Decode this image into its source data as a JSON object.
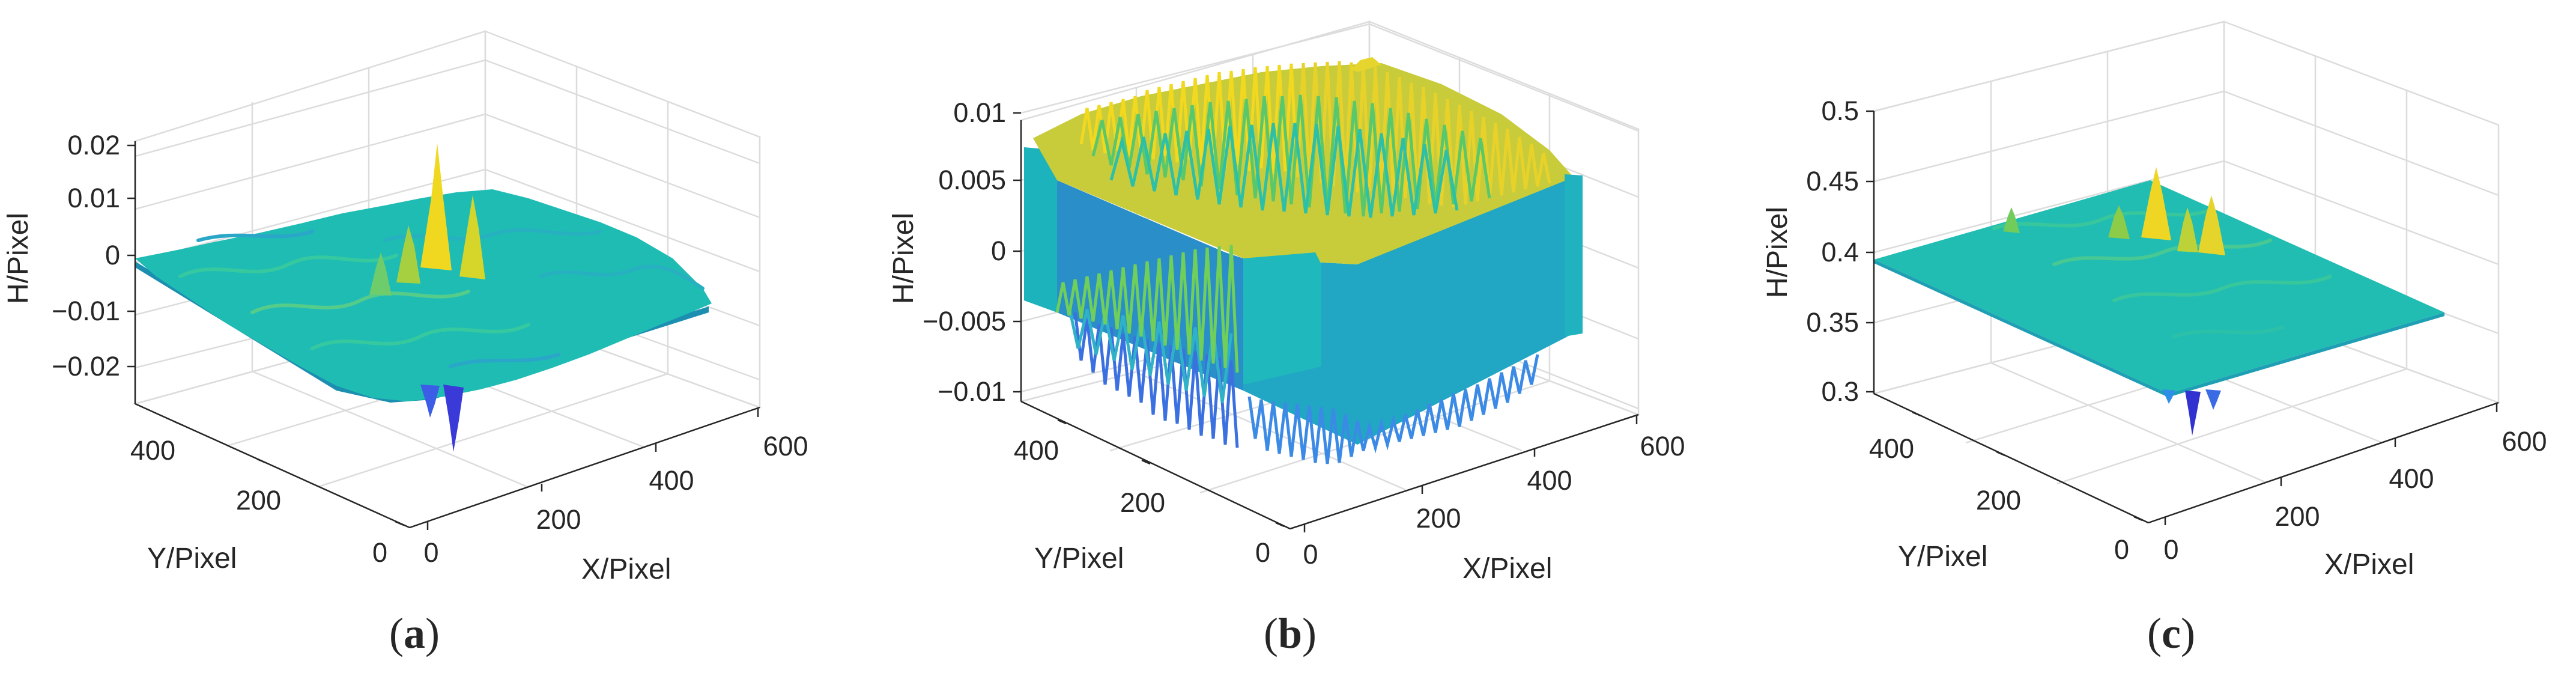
{
  "figure": {
    "panels": [
      {
        "id": "a",
        "caption": "a"
      },
      {
        "id": "b",
        "caption": "b"
      },
      {
        "id": "c",
        "caption": "c"
      }
    ]
  },
  "colors": {
    "low": "#3d2fd8",
    "mid_low": "#2a8ef0",
    "mid": "#1fc0b0",
    "mid_high": "#8ccc3c",
    "high": "#f5de10",
    "grid": "#dcdcdc",
    "axis": "#262626"
  },
  "chart_data": [
    {
      "type": "surface",
      "id": "a",
      "xlabel": "X/Pixel",
      "ylabel": "Y/Pixel",
      "zlabel": "H/Pixel",
      "xlim": [
        0,
        600
      ],
      "ylim": [
        0,
        500
      ],
      "zlim": [
        -0.025,
        0.025
      ],
      "xticks": [
        0,
        200,
        400,
        600
      ],
      "yticks": [
        0,
        200,
        400
      ],
      "zticks": [
        -0.02,
        -0.01,
        0,
        0.01,
        0.02
      ],
      "zticklabels": [
        "−0.02",
        "−0.01",
        "0",
        "0.01",
        "0.02"
      ],
      "xticklabels": [
        "0",
        "200",
        "400",
        "600"
      ],
      "yticklabels": [
        "0",
        "200",
        "400"
      ],
      "base_level": 0,
      "peaks": [
        {
          "x": 300,
          "y": 250,
          "z": 0.021
        },
        {
          "x": 340,
          "y": 290,
          "z": 0.013
        },
        {
          "x": 260,
          "y": 220,
          "z": 0.009
        }
      ],
      "valleys": [
        {
          "x": 285,
          "y": 210,
          "z": -0.025
        },
        {
          "x": 255,
          "y": 230,
          "z": -0.021
        }
      ]
    },
    {
      "type": "surface",
      "id": "b",
      "xlabel": "X/Pixel",
      "ylabel": "Y/Pixel",
      "zlabel": "H/Pixel",
      "xlim": [
        0,
        600
      ],
      "ylim": [
        0,
        500
      ],
      "zlim": [
        -0.011,
        0.011
      ],
      "xticks": [
        0,
        200,
        400,
        600
      ],
      "yticks": [
        0,
        200,
        400
      ],
      "zticks": [
        -0.01,
        -0.005,
        0,
        0.005,
        0.01
      ],
      "zticklabels": [
        "−0.01",
        "−0.005",
        "0",
        "0.005",
        "0.01"
      ],
      "xticklabels": [
        "0",
        "200",
        "400",
        "600"
      ],
      "yticklabels": [
        "0",
        "200",
        "400"
      ],
      "base_level": 0.0,
      "noise_range": [
        -0.0115,
        0.0105
      ],
      "description": "high-frequency noise surface"
    },
    {
      "type": "surface",
      "id": "c",
      "xlabel": "X/Pixel",
      "ylabel": "Y/Pixel",
      "zlabel": "H/Pixel",
      "xlim": [
        0,
        600
      ],
      "ylim": [
        0,
        500
      ],
      "zlim": [
        0.3,
        0.5
      ],
      "xticks": [
        0,
        200,
        400,
        600
      ],
      "yticks": [
        0,
        200,
        400
      ],
      "zticks": [
        0.3,
        0.35,
        0.4,
        0.45,
        0.5
      ],
      "zticklabels": [
        "0.3",
        "0.35",
        "0.4",
        "0.45",
        "0.5"
      ],
      "xticklabels": [
        "0",
        "200",
        "400",
        "600"
      ],
      "yticklabels": [
        "0",
        "200",
        "400"
      ],
      "base_level": 0.39,
      "peaks": [
        {
          "x": 300,
          "y": 250,
          "z": 0.445
        },
        {
          "x": 350,
          "y": 290,
          "z": 0.435
        },
        {
          "x": 250,
          "y": 220,
          "z": 0.425
        }
      ],
      "valleys": [
        {
          "x": 285,
          "y": 210,
          "z": 0.31
        },
        {
          "x": 255,
          "y": 230,
          "z": 0.345
        }
      ]
    }
  ]
}
